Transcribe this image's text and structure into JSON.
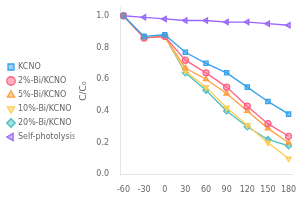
{
  "chart_data": {
    "type": "line",
    "x": [
      -60,
      -30,
      0,
      30,
      60,
      90,
      120,
      150,
      180
    ],
    "series": [
      {
        "name": "KCNO",
        "values": [
          1.0,
          0.87,
          0.88,
          0.77,
          0.7,
          0.64,
          0.55,
          0.46,
          0.38
        ],
        "marker": "square"
      },
      {
        "name": "2%-Bi/KCNO",
        "values": [
          1.0,
          0.86,
          0.87,
          0.72,
          0.64,
          0.55,
          0.43,
          0.32,
          0.24
        ],
        "marker": "circle"
      },
      {
        "name": "5%-Bi/KCNO",
        "values": [
          1.0,
          0.86,
          0.87,
          0.67,
          0.6,
          0.51,
          0.4,
          0.29,
          0.2
        ],
        "marker": "triangle-up"
      },
      {
        "name": "10%-Bi/KCNO",
        "values": [
          1.0,
          0.86,
          0.87,
          0.65,
          0.55,
          0.42,
          0.31,
          0.2,
          0.1
        ],
        "marker": "triangle-down"
      },
      {
        "name": "20%-Bi/KCNO",
        "values": [
          1.0,
          0.86,
          0.87,
          0.64,
          0.53,
          0.4,
          0.3,
          0.22,
          0.18
        ],
        "marker": "diamond"
      },
      {
        "name": "Self-photolysis",
        "values": [
          1.0,
          0.99,
          0.98,
          0.97,
          0.97,
          0.96,
          0.96,
          0.95,
          0.94
        ],
        "marker": "triangle-left"
      }
    ],
    "ylabel": "C/C₀",
    "xlim": [
      -65,
      185
    ],
    "ylim": [
      0,
      1.05
    ],
    "xticks": [
      -60,
      -30,
      0,
      30,
      60,
      90,
      120,
      150,
      180
    ],
    "yticks": [
      {
        "value": 0,
        "label": "0.0"
      },
      0.2,
      0.4,
      0.6,
      0.8,
      {
        "value": 1,
        "label": "1.0"
      }
    ],
    "grid": false,
    "legend": "left"
  }
}
